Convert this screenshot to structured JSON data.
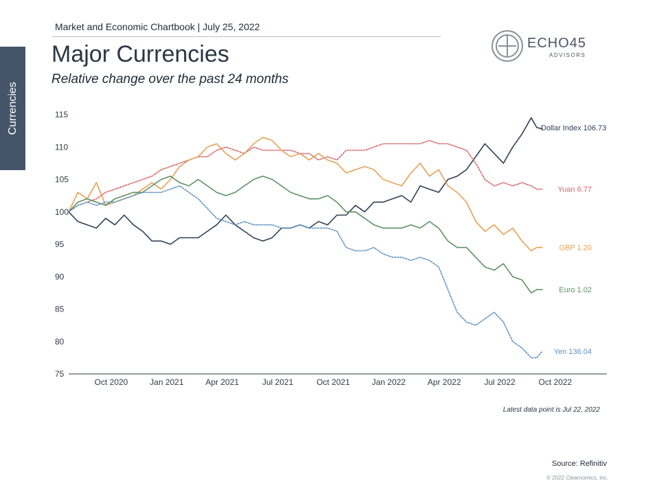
{
  "header": {
    "chartbook": "Market and Economic Chartbook | July 25, 2022",
    "title": "Major Currencies",
    "subtitle": "Relative change over the past 24 months"
  },
  "side_tab": {
    "label": "Currencies"
  },
  "logo": {
    "name": "ECHO45",
    "sub": "ADVISORS"
  },
  "footer": {
    "latest_note": "Latest data point is Jul 22, 2022",
    "source": "Source: Refinitiv",
    "copyright": "© 2022 Clearnomics, Inc."
  },
  "chart_data": {
    "type": "line",
    "title": "Major Currencies",
    "subtitle": "Relative change over the past 24 months",
    "xlabel": "",
    "ylabel": "",
    "ylim": [
      75,
      115
    ],
    "yticks": [
      75,
      80,
      85,
      90,
      95,
      100,
      105,
      110,
      115
    ],
    "xlim": [
      0,
      26
    ],
    "xticks": [
      {
        "label": "Oct 2020",
        "x": 2.3
      },
      {
        "label": "Jan 2021",
        "x": 5.3
      },
      {
        "label": "Apr 2021",
        "x": 8.3
      },
      {
        "label": "Jul 2021",
        "x": 11.3
      },
      {
        "label": "Oct 2021",
        "x": 14.3
      },
      {
        "label": "Jan 2022",
        "x": 17.3
      },
      {
        "label": "Apr 2022",
        "x": 20.3
      },
      {
        "label": "Jul 2022",
        "x": 23.3
      },
      {
        "label": "Oct 2022",
        "x": 26.3
      }
    ],
    "series": [
      {
        "name": "Dollar Index",
        "end_label": "Dollar Index 106.73",
        "color": "#2e3f55",
        "dash": "solid",
        "points": [
          [
            0,
            100
          ],
          [
            0.5,
            98.5
          ],
          [
            1,
            98
          ],
          [
            1.5,
            97.5
          ],
          [
            2,
            99
          ],
          [
            2.5,
            98
          ],
          [
            3,
            99.5
          ],
          [
            3.5,
            98
          ],
          [
            4,
            97
          ],
          [
            4.5,
            95.5
          ],
          [
            5,
            95.5
          ],
          [
            5.5,
            95
          ],
          [
            6,
            96
          ],
          [
            6.5,
            96
          ],
          [
            7,
            96
          ],
          [
            7.5,
            97
          ],
          [
            8,
            98
          ],
          [
            8.5,
            99.5
          ],
          [
            9,
            98
          ],
          [
            9.5,
            97
          ],
          [
            10,
            96
          ],
          [
            10.5,
            95.5
          ],
          [
            11,
            96
          ],
          [
            11.5,
            97.5
          ],
          [
            12,
            97.5
          ],
          [
            12.5,
            98
          ],
          [
            13,
            97.5
          ],
          [
            13.5,
            98.5
          ],
          [
            14,
            98
          ],
          [
            14.5,
            99.5
          ],
          [
            15,
            99.5
          ],
          [
            15.5,
            101
          ],
          [
            16,
            100
          ],
          [
            16.5,
            101.5
          ],
          [
            17,
            101.5
          ],
          [
            17.5,
            102
          ],
          [
            18,
            102.5
          ],
          [
            18.5,
            101.5
          ],
          [
            19,
            104
          ],
          [
            19.5,
            103.5
          ],
          [
            20,
            103
          ],
          [
            20.5,
            105
          ],
          [
            21,
            105.5
          ],
          [
            21.5,
            106.5
          ],
          [
            22,
            108.5
          ],
          [
            22.5,
            110.5
          ],
          [
            23,
            109
          ],
          [
            23.5,
            107.5
          ],
          [
            24,
            110
          ],
          [
            24.5,
            112
          ],
          [
            25,
            114.5
          ],
          [
            25.3,
            113
          ],
          [
            25.6,
            112.8
          ]
        ]
      },
      {
        "name": "Yuan",
        "end_label": "Yuan 6.77",
        "color": "#d9646a",
        "dash": "dotted",
        "points": [
          [
            0,
            100
          ],
          [
            0.5,
            101
          ],
          [
            1,
            101.5
          ],
          [
            1.5,
            102
          ],
          [
            2,
            103
          ],
          [
            2.5,
            103.5
          ],
          [
            3,
            104
          ],
          [
            3.5,
            104.5
          ],
          [
            4,
            105
          ],
          [
            4.5,
            105.5
          ],
          [
            5,
            106.5
          ],
          [
            5.5,
            107
          ],
          [
            6,
            107.5
          ],
          [
            6.5,
            108
          ],
          [
            7,
            108.5
          ],
          [
            7.5,
            108.5
          ],
          [
            8,
            109.5
          ],
          [
            8.5,
            110
          ],
          [
            9,
            109.5
          ],
          [
            9.5,
            109
          ],
          [
            10,
            110
          ],
          [
            10.5,
            109.5
          ],
          [
            11,
            109.5
          ],
          [
            11.5,
            109.5
          ],
          [
            12,
            109.5
          ],
          [
            12.5,
            109
          ],
          [
            13,
            109
          ],
          [
            13.5,
            108
          ],
          [
            14,
            108.5
          ],
          [
            14.5,
            108
          ],
          [
            15,
            109.5
          ],
          [
            15.5,
            109.5
          ],
          [
            16,
            109.5
          ],
          [
            16.5,
            110
          ],
          [
            17,
            110.5
          ],
          [
            17.5,
            110.5
          ],
          [
            18,
            110.5
          ],
          [
            18.5,
            110.5
          ],
          [
            19,
            110.5
          ],
          [
            19.5,
            111
          ],
          [
            20,
            110.5
          ],
          [
            20.5,
            110.5
          ],
          [
            21,
            110
          ],
          [
            21.5,
            109.5
          ],
          [
            22,
            107.5
          ],
          [
            22.5,
            105
          ],
          [
            23,
            104
          ],
          [
            23.5,
            104.5
          ],
          [
            24,
            104
          ],
          [
            24.5,
            104.5
          ],
          [
            25,
            104
          ],
          [
            25.3,
            103.5
          ],
          [
            25.6,
            103.5
          ]
        ]
      },
      {
        "name": "GBP",
        "end_label": "GBP 1.20",
        "color": "#e6a055",
        "dash": "solid",
        "points": [
          [
            0,
            100
          ],
          [
            0.5,
            103
          ],
          [
            1,
            102
          ],
          [
            1.5,
            104.5
          ],
          [
            2,
            101
          ],
          [
            2.5,
            101.5
          ],
          [
            3,
            102
          ],
          [
            3.5,
            102.5
          ],
          [
            4,
            103.5
          ],
          [
            4.5,
            104.5
          ],
          [
            5,
            103.5
          ],
          [
            5.5,
            105
          ],
          [
            6,
            107
          ],
          [
            6.5,
            108
          ],
          [
            7,
            108.5
          ],
          [
            7.5,
            110
          ],
          [
            8,
            110.5
          ],
          [
            8.5,
            109
          ],
          [
            9,
            108
          ],
          [
            9.5,
            109
          ],
          [
            10,
            110.5
          ],
          [
            10.5,
            111.5
          ],
          [
            11,
            111
          ],
          [
            11.5,
            109.5
          ],
          [
            12,
            108.5
          ],
          [
            12.5,
            109
          ],
          [
            13,
            108
          ],
          [
            13.5,
            109
          ],
          [
            14,
            108
          ],
          [
            14.5,
            107.5
          ],
          [
            15,
            106
          ],
          [
            15.5,
            106.5
          ],
          [
            16,
            107
          ],
          [
            16.5,
            106.5
          ],
          [
            17,
            105
          ],
          [
            17.5,
            104.5
          ],
          [
            18,
            104
          ],
          [
            18.5,
            106
          ],
          [
            19,
            107.5
          ],
          [
            19.5,
            105.5
          ],
          [
            20,
            106.5
          ],
          [
            20.5,
            104
          ],
          [
            21,
            103
          ],
          [
            21.5,
            101.5
          ],
          [
            22,
            98.5
          ],
          [
            22.5,
            97
          ],
          [
            23,
            98
          ],
          [
            23.5,
            96.5
          ],
          [
            24,
            97.5
          ],
          [
            24.5,
            95.5
          ],
          [
            25,
            94
          ],
          [
            25.3,
            94.5
          ],
          [
            25.6,
            94.5
          ]
        ]
      },
      {
        "name": "Euro",
        "end_label": "Euro 1.02",
        "color": "#5b9163",
        "dash": "solid",
        "points": [
          [
            0,
            100
          ],
          [
            0.5,
            101.5
          ],
          [
            1,
            102
          ],
          [
            1.5,
            101.5
          ],
          [
            2,
            101
          ],
          [
            2.5,
            102
          ],
          [
            3,
            102.5
          ],
          [
            3.5,
            103
          ],
          [
            4,
            103
          ],
          [
            4.5,
            104
          ],
          [
            5,
            105
          ],
          [
            5.5,
            105.5
          ],
          [
            6,
            104.5
          ],
          [
            6.5,
            104
          ],
          [
            7,
            105
          ],
          [
            7.5,
            104
          ],
          [
            8,
            103
          ],
          [
            8.5,
            102.5
          ],
          [
            9,
            103
          ],
          [
            9.5,
            104
          ],
          [
            10,
            105
          ],
          [
            10.5,
            105.5
          ],
          [
            11,
            105
          ],
          [
            11.5,
            104
          ],
          [
            12,
            103
          ],
          [
            12.5,
            102.5
          ],
          [
            13,
            102
          ],
          [
            13.5,
            102
          ],
          [
            14,
            102.5
          ],
          [
            14.5,
            101.5
          ],
          [
            15,
            100
          ],
          [
            15.5,
            100
          ],
          [
            16,
            99
          ],
          [
            16.5,
            98
          ],
          [
            17,
            97.5
          ],
          [
            17.5,
            97.5
          ],
          [
            18,
            97.5
          ],
          [
            18.5,
            98
          ],
          [
            19,
            97.5
          ],
          [
            19.5,
            98.5
          ],
          [
            20,
            97.5
          ],
          [
            20.5,
            95.5
          ],
          [
            21,
            94.5
          ],
          [
            21.5,
            94.5
          ],
          [
            22,
            93
          ],
          [
            22.5,
            91.5
          ],
          [
            23,
            91
          ],
          [
            23.5,
            92
          ],
          [
            24,
            90
          ],
          [
            24.5,
            89.5
          ],
          [
            25,
            87.5
          ],
          [
            25.3,
            88
          ],
          [
            25.6,
            88
          ]
        ]
      },
      {
        "name": "Yen",
        "end_label": "Yen 136.04",
        "color": "#5f92c3",
        "dash": "dotted",
        "points": [
          [
            0,
            100
          ],
          [
            0.5,
            101
          ],
          [
            1,
            101.5
          ],
          [
            1.5,
            101
          ],
          [
            2,
            101.5
          ],
          [
            2.5,
            101.5
          ],
          [
            3,
            102
          ],
          [
            3.5,
            102.5
          ],
          [
            4,
            103
          ],
          [
            4.5,
            103
          ],
          [
            5,
            103
          ],
          [
            5.5,
            103.5
          ],
          [
            6,
            104
          ],
          [
            6.5,
            103
          ],
          [
            7,
            102
          ],
          [
            7.5,
            100.5
          ],
          [
            8,
            99
          ],
          [
            8.5,
            98.5
          ],
          [
            9,
            98
          ],
          [
            9.5,
            98.5
          ],
          [
            10,
            98
          ],
          [
            10.5,
            98
          ],
          [
            11,
            98
          ],
          [
            11.5,
            97.5
          ],
          [
            12,
            97.5
          ],
          [
            12.5,
            98
          ],
          [
            13,
            97.5
          ],
          [
            13.5,
            97.5
          ],
          [
            14,
            97.5
          ],
          [
            14.5,
            97
          ],
          [
            15,
            94.5
          ],
          [
            15.5,
            94
          ],
          [
            16,
            94
          ],
          [
            16.5,
            94.5
          ],
          [
            17,
            93.5
          ],
          [
            17.5,
            93
          ],
          [
            18,
            93
          ],
          [
            18.5,
            92.5
          ],
          [
            19,
            93
          ],
          [
            19.5,
            92.5
          ],
          [
            20,
            91.5
          ],
          [
            20.5,
            88
          ],
          [
            21,
            84.5
          ],
          [
            21.5,
            83
          ],
          [
            22,
            82.5
          ],
          [
            22.5,
            83.5
          ],
          [
            23,
            84.5
          ],
          [
            23.5,
            83
          ],
          [
            24,
            80
          ],
          [
            24.5,
            79
          ],
          [
            25,
            77.5
          ],
          [
            25.3,
            77.5
          ],
          [
            25.6,
            78.5
          ]
        ]
      }
    ]
  }
}
